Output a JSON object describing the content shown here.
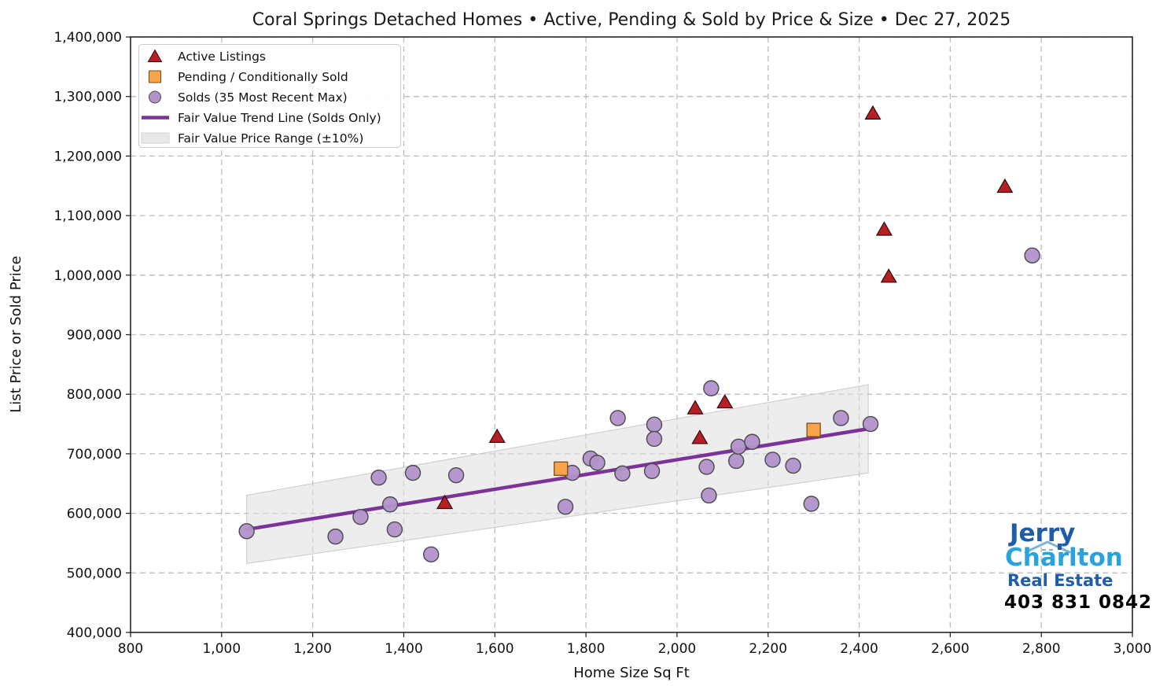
{
  "title": "Coral Springs Detached Homes • Active, Pending & Sold by Price & Size • Dec 27, 2025",
  "chart_data": {
    "type": "scatter",
    "title": "Coral Springs Detached Homes • Active, Pending & Sold by Price & Size • Dec 27, 2025",
    "xlabel": "Home Size Sq Ft",
    "ylabel": "List Price or Sold Price",
    "xlim": [
      800,
      3000
    ],
    "ylim": [
      400000,
      1400000
    ],
    "x_tick_step": 200,
    "y_tick_step": 100000,
    "grid": true,
    "grid_style": "dashed",
    "legend_position": "upper left",
    "series": [
      {
        "name": "Active Listings",
        "marker": "triangle",
        "fill": "#b71f26",
        "edge": "#33070a",
        "points": [
          [
            2430,
            1272000
          ],
          [
            2720,
            1149000
          ],
          [
            2455,
            1077000
          ],
          [
            2465,
            998000
          ],
          [
            2105,
            787000
          ],
          [
            2040,
            777000
          ],
          [
            1605,
            729000
          ],
          [
            2050,
            727000
          ],
          [
            1490,
            618000
          ]
        ]
      },
      {
        "name": "Pending / Conditionally Sold",
        "marker": "square",
        "fill": "#f7a44c",
        "edge": "#7d4c13",
        "points": [
          [
            1745,
            675000
          ],
          [
            2300,
            740000
          ]
        ]
      },
      {
        "name": "Solds (35 Most Recent Max)",
        "marker": "circle",
        "fill": "#b292cb",
        "edge": "#4a4a4a",
        "points": [
          [
            1055,
            570000
          ],
          [
            1250,
            561000
          ],
          [
            1305,
            594000
          ],
          [
            1345,
            660000
          ],
          [
            1370,
            615000
          ],
          [
            1380,
            573000
          ],
          [
            1420,
            668000
          ],
          [
            1460,
            531000
          ],
          [
            1515,
            664000
          ],
          [
            1755,
            611000
          ],
          [
            1770,
            668000
          ],
          [
            1810,
            692000
          ],
          [
            1825,
            685000
          ],
          [
            1870,
            760000
          ],
          [
            1880,
            667000
          ],
          [
            1945,
            671000
          ],
          [
            1950,
            749000
          ],
          [
            1950,
            725000
          ],
          [
            2065,
            678000
          ],
          [
            2070,
            630000
          ],
          [
            2075,
            810000
          ],
          [
            2130,
            688000
          ],
          [
            2135,
            712000
          ],
          [
            2165,
            720000
          ],
          [
            2210,
            690000
          ],
          [
            2255,
            680000
          ],
          [
            2295,
            616000
          ],
          [
            2360,
            760000
          ],
          [
            2425,
            750000
          ],
          [
            2780,
            1033000
          ]
        ]
      },
      {
        "name": "Fair Value Trend Line (Solds Only)",
        "marker": "line",
        "fill": "#7b3397",
        "edge": "#7b3397",
        "points": [
          [
            1055,
            573000
          ],
          [
            2420,
            742000
          ]
        ]
      },
      {
        "name": "Fair Value Price Range (±10%)",
        "marker": "band",
        "fill": "#dedede",
        "edge": "#c9c9c9",
        "band_pct": 10,
        "points": [
          [
            1055,
            573000
          ],
          [
            2420,
            742000
          ]
        ]
      }
    ]
  },
  "logo": {
    "line1": "Jerry",
    "line2": "Charlton",
    "line3": "Real Estate",
    "phone": "403 831 0842",
    "dark_blue": "#1f5ca9",
    "light_blue": "#29a3dc",
    "phone_color": "#000000"
  }
}
